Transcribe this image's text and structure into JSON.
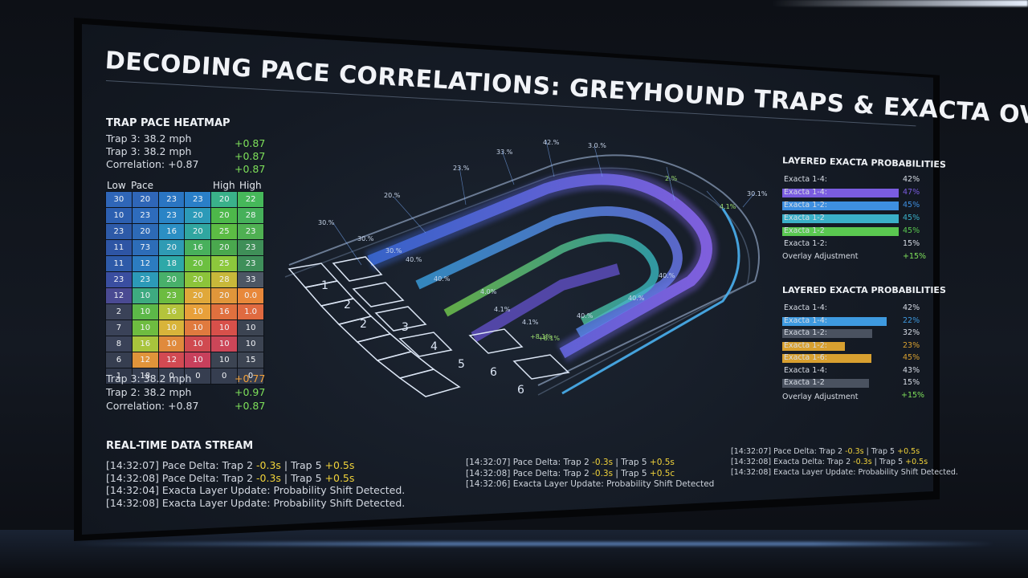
{
  "title": "DECODING PACE CORRELATIONS: GREYHOUND TRAPS & EXACTA OVERLAYS",
  "heatmap": {
    "heading": "TRAP PACE HEATMAP",
    "stats_top": [
      {
        "label": "Trap 3: 38.2 mph",
        "value": "+0.87"
      },
      {
        "label": "Trap 3: 38.2 mph",
        "value": "+0.87"
      },
      {
        "label": "Correlation: +0.87",
        "value": "+0.87"
      }
    ],
    "axis_low": "Low",
    "axis_pace": "Pace",
    "axis_high": "High",
    "axis_high2": "High",
    "rows": [
      [
        [
          "30",
          "#2f66b8"
        ],
        [
          "20",
          "#2f66b8"
        ],
        [
          "23",
          "#2a75c2"
        ],
        [
          "23",
          "#2a7fc8"
        ],
        [
          "20",
          "#3ab18a"
        ],
        [
          "22",
          "#46b85a"
        ]
      ],
      [
        [
          "10",
          "#2c5fb0"
        ],
        [
          "23",
          "#2e6cbc"
        ],
        [
          "23",
          "#2a84c6"
        ],
        [
          "20",
          "#2c9ab8"
        ],
        [
          "20",
          "#4db84a"
        ],
        [
          "28",
          "#46b05a"
        ]
      ],
      [
        [
          "23",
          "#2d5aa8"
        ],
        [
          "20",
          "#2d6ab6"
        ],
        [
          "16",
          "#2b8fc4"
        ],
        [
          "20",
          "#30a6a0"
        ],
        [
          "25",
          "#5cbc44"
        ],
        [
          "23",
          "#4fb052"
        ]
      ],
      [
        [
          "11",
          "#2e55a4"
        ],
        [
          "73",
          "#2d6db8"
        ],
        [
          "20",
          "#2f9bb4"
        ],
        [
          "16",
          "#48b05c"
        ],
        [
          "20",
          "#4aa84e"
        ],
        [
          "23",
          "#3f8f58"
        ]
      ],
      [
        [
          "11",
          "#2e5aa8"
        ],
        [
          "12",
          "#2c7cc0"
        ],
        [
          "18",
          "#2ea8a8"
        ],
        [
          "20",
          "#6cc040"
        ],
        [
          "25",
          "#8cc83c"
        ],
        [
          "23",
          "#3f8f5a"
        ]
      ],
      [
        [
          "23",
          "#3a4ea0"
        ],
        [
          "23",
          "#2c9ab8"
        ],
        [
          "20",
          "#48b06a"
        ],
        [
          "20",
          "#8cc43a"
        ],
        [
          "28",
          "#c8b83a"
        ],
        [
          "33",
          "#4c5664"
        ]
      ],
      [
        [
          "12",
          "#4a4a92"
        ],
        [
          "10",
          "#3eaa80"
        ],
        [
          "23",
          "#6cbc40"
        ],
        [
          "20",
          "#e0a83a"
        ],
        [
          "20",
          "#e0963a"
        ],
        [
          "0.0",
          "#e8883a"
        ]
      ],
      [
        [
          "2",
          "#3a4258"
        ],
        [
          "10",
          "#5cb848"
        ],
        [
          "16",
          "#b4c43c"
        ],
        [
          "10",
          "#e8a03a"
        ],
        [
          "16",
          "#e0703e"
        ],
        [
          "1.0",
          "#e06a40"
        ]
      ],
      [
        [
          "7",
          "#3a4258"
        ],
        [
          "10",
          "#6ebc40"
        ],
        [
          "10",
          "#d8b43a"
        ],
        [
          "10",
          "#e07a3e"
        ],
        [
          "10",
          "#d8504a"
        ],
        [
          "10",
          "#3c4452"
        ]
      ],
      [
        [
          "8",
          "#3a4258"
        ],
        [
          "16",
          "#a8c43c"
        ],
        [
          "10",
          "#e08a3c"
        ],
        [
          "10",
          "#d04a50"
        ],
        [
          "10",
          "#cc4658"
        ],
        [
          "10",
          "#3c4452"
        ]
      ],
      [
        [
          "6",
          "#363e50"
        ],
        [
          "12",
          "#e0943a"
        ],
        [
          "12",
          "#d24a52"
        ],
        [
          "10",
          "#c8405c"
        ],
        [
          "10",
          "#3c4452"
        ],
        [
          "15",
          "#3c4452"
        ]
      ],
      [
        [
          "1",
          "#30384a"
        ],
        [
          "18",
          "#363e50"
        ],
        [
          "0",
          "#363e50"
        ],
        [
          "0",
          "#363e50"
        ],
        [
          "0",
          "#363e50"
        ],
        [
          "0",
          "#363e50"
        ]
      ]
    ],
    "stats_bottom": [
      {
        "label": "Trap 3: 38.2 mph",
        "value": "+0.77",
        "color": "#f3a13a"
      },
      {
        "label": "Trap 2: 38.2 mph",
        "value": "+0.97",
        "color": "#7ee05a"
      },
      {
        "label": "Correlation: +0.87",
        "value": "+0.87",
        "color": "#7ee05a"
      }
    ]
  },
  "track": {
    "traps": [
      "1",
      "2",
      "2",
      "3",
      "4",
      "5",
      "6",
      "6"
    ],
    "annotations": [
      "30.%",
      "30.%",
      "20.%",
      "23.%",
      "33.%",
      "42.%",
      "3.0.%",
      "2.%",
      "4.1%",
      "30.1%",
      "30.%",
      "40.%",
      "40.%",
      "4.0%",
      "4.1%",
      "4.1%",
      "40.%",
      "40.%",
      "+8.1%",
      "+8.1%",
      "40.%"
    ]
  },
  "exacta1": {
    "heading": "LAYERED EXACTA PROBABILITIES",
    "rows": [
      {
        "label": "Exacta 1-4:",
        "value": "42%",
        "color": "",
        "fill": 0
      },
      {
        "label": "Exacta 1-4:",
        "value": "47%",
        "color": "#7a5ce0",
        "fill": 1.0
      },
      {
        "label": "Exacta 1-2:",
        "value": "45%",
        "color": "#3e8fe0",
        "fill": 1.0
      },
      {
        "label": "Exacta 1-2",
        "value": "45%",
        "color": "#3ab0c8",
        "fill": 1.0
      },
      {
        "label": "Exacta 1-2",
        "value": "45%",
        "color": "#5ac850",
        "fill": 1.0
      },
      {
        "label": "Exacta 1-2:",
        "value": "15%",
        "color": "",
        "fill": 0
      }
    ],
    "overlay_label": "Overlay Adjustment",
    "overlay_value": "+15%"
  },
  "exacta2": {
    "heading": "LAYERED EXACTA PROBABILITIES",
    "rows": [
      {
        "label": "Exacta 1-4:",
        "value": "42%",
        "color": "",
        "fill": 0
      },
      {
        "label": "Exacta 1-4:",
        "value": "22%",
        "color": "#3e9ae0",
        "fill": 1.0
      },
      {
        "label": "Exacta 1-2:",
        "value": "32%",
        "color": "#4a5260",
        "fill": 0.86
      },
      {
        "label": "Exacta 1-2:",
        "value": "23%",
        "color": "#d8a030",
        "fill": 0.6
      },
      {
        "label": "Exacta 1-6:",
        "value": "45%",
        "color": "#d8a030",
        "fill": 0.85
      },
      {
        "label": "Exacta 1-4:",
        "value": "43%",
        "color": "",
        "fill": 0
      },
      {
        "label": "Exacta 1-2",
        "value": "15%",
        "color": "#4a5260",
        "fill": 0.83
      }
    ],
    "overlay_label": "Overlay Adjustment",
    "overlay_value": "+15%"
  },
  "stream": {
    "heading": "REAL-TIME DATA STREAM",
    "col1": [
      {
        "prefix": "[14:32:07] Pace Delta: Trap 2",
        "a": "-0.3s",
        "mid": "| Trap 5",
        "b": "+0.5s"
      },
      {
        "prefix": "[14:32:08] Pace Delta: Trap 2",
        "a": "-0.3s",
        "mid": "| Trap 5",
        "b": "+0.5s"
      },
      {
        "text": "[14:32:04] Exacta Layer Update: Probability Shift Detected."
      },
      {
        "text": "[14:32:08] Exacta Layer Update: Probability Shift Detected."
      }
    ],
    "col2": [
      {
        "prefix": "[14:32:07] Pace Delta: Trap 2",
        "a": "-0.3s",
        "mid": "| Trap 5",
        "b": "+0.5s"
      },
      {
        "prefix": "[14:32:08] Pace Delta: Trap 2",
        "a": "-0.3s",
        "mid": "| Trap 5",
        "b": "+0.5c"
      },
      {
        "text": "[14:32:06] Exacta Layer Update: Probability Shift Detected"
      }
    ],
    "col3": [
      {
        "prefix": "[14:32:07] Pace Delta: Trap 2",
        "a": "-0.3s",
        "mid": "| Trap 5",
        "b": "+0.5s"
      },
      {
        "prefix": "[14:32:08] Exacta Delta: Trap 2",
        "a": "-0.3s",
        "mid": "| Trap 5",
        "b": "+0.5s"
      },
      {
        "text": "[14:32:08] Exacta Layer Update: Probability Shift Detected."
      }
    ]
  }
}
